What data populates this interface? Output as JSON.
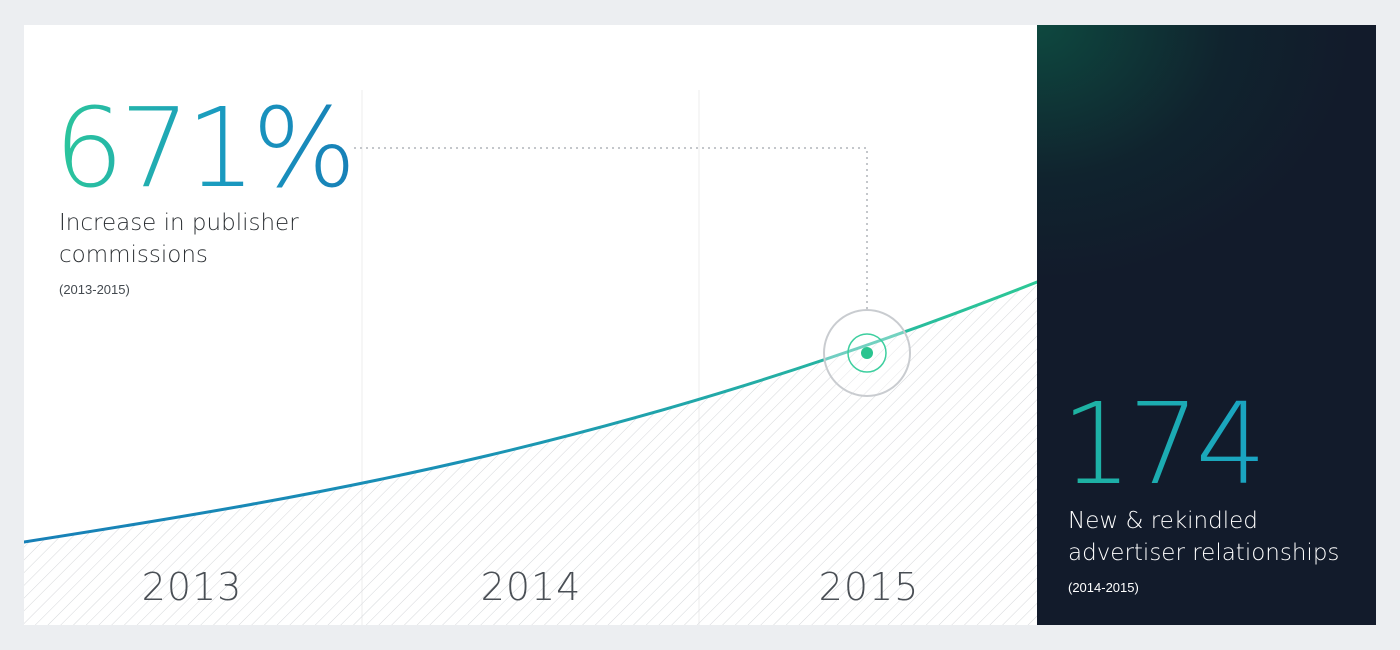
{
  "colors": {
    "background": "#eceef1",
    "card": "#ffffff",
    "panel": "#121b2b",
    "accent_green": "#2cc79a",
    "accent_blue": "#1780b7",
    "caption_text": "#2b2f33"
  },
  "left_stat": {
    "value": "671%",
    "caption": "Increase in publisher commissions",
    "range": "(2013-2015)"
  },
  "right_stat": {
    "value": "174",
    "caption": "New & rekindled advertiser relationships",
    "range": "(2014-2015)"
  },
  "chart_data": {
    "type": "area",
    "categories": [
      "2013",
      "2014",
      "2015"
    ],
    "title": "",
    "xlabel": "",
    "ylabel": "",
    "grid": "vertical lines at each year",
    "highlight": {
      "category": "2015",
      "marker": "circle"
    }
  }
}
